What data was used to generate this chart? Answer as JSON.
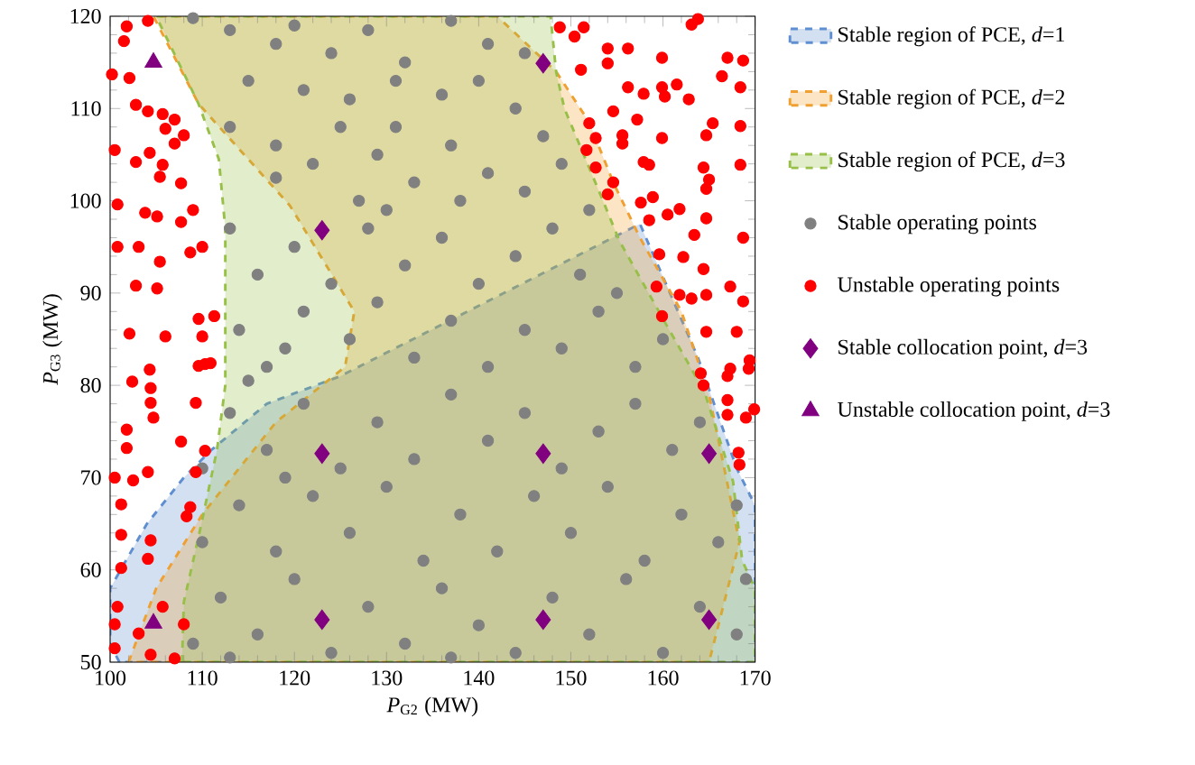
{
  "chart_data": {
    "type": "scatter",
    "xlabel": "*P*$_{G2}$ (MW)",
    "ylabel": "*P*$_{G3}$ (MW)",
    "xlim": [
      100,
      170
    ],
    "ylim": [
      50,
      120
    ],
    "xticks": [
      100,
      110,
      120,
      130,
      140,
      150,
      160,
      170
    ],
    "yticks": [
      50,
      60,
      70,
      80,
      90,
      100,
      110,
      120
    ],
    "legend": "right",
    "series": [
      {
        "name": "Stable region of PCE, *d*=1",
        "type": "area",
        "line_style": "dashed",
        "color": "#5f8fd0",
        "x": [
          101,
          100,
          100,
          104,
          108,
          111,
          117,
          125,
          157.5,
          163.8,
          168,
          170,
          170
        ],
        "values": [
          50,
          52,
          58,
          65,
          70,
          73,
          78,
          81,
          97.5,
          83,
          71,
          67,
          50
        ]
      },
      {
        "name": "Stable region of PCE, *d*=2",
        "type": "area",
        "line_style": "dashed",
        "color": "#f0a030",
        "x": [
          102,
          105,
          110,
          118,
          125.5,
          126.5,
          119.5,
          115,
          109.6,
          104.7,
          142,
          148.4,
          152,
          154.6,
          157.5,
          162,
          165,
          168.3,
          165
        ],
        "values": [
          50,
          58,
          66,
          76,
          82,
          88,
          99.5,
          104.5,
          110.5,
          120,
          120,
          114,
          108.5,
          102,
          96,
          88,
          79,
          63,
          50
        ]
      },
      {
        "name": "Stable region of PCE, *d*=3",
        "type": "area",
        "line_style": "dashed",
        "color": "#98c048",
        "x": [
          107.8,
          108,
          109.8,
          111.6,
          112.5,
          112.5,
          111.8,
          109.6,
          105,
          147.8,
          148.4,
          149.3,
          153.2,
          155.3,
          160.4,
          164.5,
          167.6,
          168.6,
          170,
          170
        ],
        "values": [
          50,
          56.5,
          64.5,
          73,
          80,
          97,
          104.5,
          110.5,
          120,
          120,
          114,
          110,
          100.7,
          95.6,
          86.5,
          79.3,
          69.6,
          61,
          58,
          50
        ]
      },
      {
        "name": "Stable operating points",
        "marker": "circle",
        "color": "#808080",
        "x": [
          109,
          113,
          118,
          120,
          124,
          128,
          132,
          137,
          141,
          145,
          115,
          121,
          126,
          131,
          136,
          140,
          144,
          147,
          113,
          118,
          122,
          125,
          129,
          133,
          137,
          141,
          145,
          149,
          152,
          127,
          131,
          118,
          113,
          116,
          120,
          124,
          128,
          132,
          136,
          140,
          144,
          148,
          151,
          155,
          130,
          138,
          114,
          117,
          121,
          126,
          129,
          133,
          137,
          141,
          145,
          149,
          153,
          157,
          160,
          115,
          119,
          113,
          117,
          121,
          125,
          129,
          133,
          137,
          141,
          145,
          149,
          153,
          157,
          161,
          164,
          110,
          119,
          110,
          114,
          118,
          122,
          126,
          130,
          134,
          138,
          142,
          146,
          150,
          154,
          158,
          162,
          166,
          168,
          109,
          112,
          116,
          120,
          124,
          128,
          132,
          136,
          140,
          144,
          148,
          152,
          156,
          160,
          164,
          168,
          169,
          113,
          137
        ],
        "values": [
          119.8,
          118.5,
          117,
          119,
          116,
          118.5,
          115,
          119.5,
          117,
          116,
          113,
          112,
          111,
          113,
          111.5,
          113,
          110,
          107,
          108,
          106,
          104,
          108,
          105,
          102,
          106,
          103,
          101,
          104,
          99,
          100,
          108,
          102.5,
          97,
          92,
          95,
          91,
          97,
          93,
          96,
          91,
          94,
          97,
          92,
          90,
          99,
          100,
          86,
          82,
          88,
          85,
          89,
          83,
          87,
          82,
          86,
          84,
          88,
          82,
          85,
          80.5,
          84,
          77,
          73,
          78,
          71,
          76,
          72,
          79,
          74,
          77,
          71,
          75,
          78,
          73,
          76,
          71,
          70,
          63,
          67,
          62,
          68,
          64,
          69,
          61,
          66,
          62,
          68,
          64,
          69,
          61,
          66,
          63,
          67,
          52,
          57,
          53,
          59,
          51,
          56,
          52,
          58,
          54,
          51,
          57,
          53,
          59,
          51,
          56,
          53,
          59,
          50.5,
          50.5
        ]
      },
      {
        "name": "Unstable operating points",
        "marker": "circle",
        "color": "#ff0000",
        "x": [
          104.1,
          101.8,
          101.5,
          100.2,
          102.1,
          102.8,
          104.1,
          105.7,
          107,
          106,
          108,
          104.3,
          107,
          100.5,
          102.8,
          105.7,
          107.7,
          105.4,
          100.8,
          103.8,
          105.1,
          107.7,
          109,
          100.8,
          103.1,
          105.4,
          108.7,
          110,
          102.8,
          105.1,
          109.6,
          111.3,
          102.1,
          106,
          110,
          104.3,
          110.3,
          102.4,
          109.6,
          110.9,
          104.4,
          104.4,
          101.8,
          104.7,
          109.3,
          101.8,
          107.7,
          110.3,
          100.5,
          102.5,
          104.1,
          109.3,
          101.2,
          108.7,
          101.2,
          104.4,
          108.3,
          101.2,
          104.1,
          100.8,
          105.7,
          100.5,
          103.1,
          108,
          100.5,
          107,
          104.4,
          148.8,
          151.4,
          150.4,
          154,
          156.2,
          154,
          159.9,
          163.1,
          163.8,
          167,
          168.7,
          151.1,
          156.2,
          157.9,
          159.9,
          161.5,
          166.4,
          168.4,
          162.8,
          160.2,
          154.6,
          157.2,
          152,
          165.4,
          168.4,
          152.7,
          155.6,
          155.6,
          159.9,
          164.7,
          151.7,
          157.9,
          158.5,
          152.7,
          164.4,
          168.4,
          154.6,
          165,
          164.7,
          154,
          157.6,
          158.9,
          161.8,
          160.5,
          164.7,
          158.5,
          163.4,
          168.7,
          159.6,
          162.2,
          164.4,
          159.3,
          161.8,
          167.3,
          163.1,
          164.7,
          168.7,
          159.9,
          164.7,
          168,
          169.4,
          167.3,
          164.1,
          164.4,
          167,
          167,
          167,
          169,
          169.9,
          168.2,
          168.3,
          169.3
        ],
        "values": [
          119.5,
          118.9,
          117.3,
          113.7,
          113.3,
          110.4,
          109.7,
          109.4,
          108.8,
          107.8,
          107.1,
          105.2,
          106.2,
          105.5,
          104.2,
          103.9,
          101.9,
          102.6,
          99.6,
          98.7,
          98.3,
          97.7,
          99,
          95,
          95,
          93.4,
          94.4,
          95,
          90.8,
          90.5,
          87.2,
          87.5,
          85.6,
          85.3,
          85.3,
          81.7,
          82.3,
          80.4,
          82.1,
          82.4,
          79.7,
          78.1,
          75.2,
          76.5,
          78.1,
          73.2,
          73.9,
          72.9,
          70,
          69.7,
          70.6,
          70.6,
          67.1,
          66.8,
          63.8,
          63.2,
          65.8,
          60.2,
          61.2,
          56,
          56,
          54.1,
          53.1,
          54.1,
          51.5,
          50.4,
          50.8,
          118.8,
          118.8,
          117.8,
          116.5,
          116.5,
          114.9,
          115.5,
          119.1,
          119.7,
          115.5,
          115.2,
          114.2,
          112.3,
          111.6,
          112.3,
          112.6,
          113.5,
          112.3,
          111,
          111.3,
          109.7,
          108.8,
          108.4,
          108.4,
          108.1,
          106.8,
          107.1,
          106.2,
          106.8,
          107.1,
          105.5,
          104.2,
          103.9,
          103.6,
          103.6,
          103.9,
          102,
          102.3,
          101.3,
          100.7,
          99.8,
          100.4,
          99.1,
          98.5,
          98.1,
          97.9,
          96.3,
          96,
          94.2,
          93.9,
          92.6,
          90.7,
          89.8,
          90.7,
          89.4,
          89.8,
          89.1,
          87.5,
          85.8,
          85.8,
          82.7,
          81.8,
          81.3,
          80,
          81,
          78.4,
          76.8,
          76.5,
          77.4,
          72.7,
          71.4,
          81.8
        ]
      },
      {
        "name": "Stable collocation point, *d*=3",
        "marker": "diamond",
        "color": "#800080",
        "x": [
          123,
          123,
          123,
          147,
          147,
          147,
          165,
          165
        ],
        "values": [
          96.8,
          72.6,
          54.6,
          114.9,
          72.6,
          54.6,
          72.6,
          54.6
        ]
      },
      {
        "name": "Unstable collocation point, *d*=3",
        "marker": "triangle",
        "color": "#800080",
        "x": [
          104.7,
          104.7
        ],
        "values": [
          115,
          54.2
        ]
      }
    ]
  }
}
